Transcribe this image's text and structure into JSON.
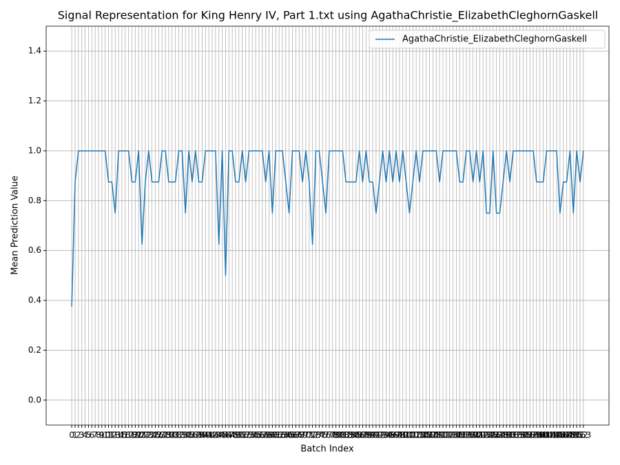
{
  "chart_data": {
    "type": "line",
    "title": "Signal Representation for King Henry IV, Part 1.txt using AgathaChristie_ElizabethCleghornGaskell",
    "xlabel": "Batch Index",
    "ylabel": "Mean Prediction Value",
    "x": [
      0,
      1,
      2,
      3,
      4,
      5,
      6,
      7,
      8,
      9,
      10,
      11,
      12,
      13,
      14,
      15,
      16,
      17,
      18,
      19,
      20,
      21,
      22,
      23,
      24,
      25,
      26,
      27,
      28,
      29,
      30,
      31,
      32,
      33,
      34,
      35,
      36,
      37,
      38,
      39,
      40,
      41,
      42,
      43,
      44,
      45,
      46,
      47,
      48,
      49,
      50,
      51,
      52,
      53,
      54,
      55,
      56,
      57,
      58,
      59,
      60,
      61,
      62,
      63,
      64,
      65,
      66,
      67,
      68,
      69,
      70,
      71,
      72,
      73,
      74,
      75,
      76,
      77,
      78,
      79,
      80,
      81,
      82,
      83,
      84,
      85,
      86,
      87,
      88,
      89,
      90,
      91,
      92,
      93,
      94,
      95,
      96,
      97,
      98,
      99,
      100,
      101,
      102,
      103,
      104,
      105,
      106,
      107,
      108,
      109,
      110,
      111,
      112,
      113,
      114,
      115,
      116,
      117,
      118,
      119,
      120,
      121,
      122,
      123,
      124,
      125,
      126,
      127,
      128,
      129,
      130,
      131,
      132,
      133,
      134,
      135,
      136,
      137,
      138,
      139,
      140,
      141,
      142,
      143,
      144,
      145,
      146,
      147,
      148,
      149,
      150,
      151,
      152,
      153
    ],
    "series": [
      {
        "name": "AgathaChristie_ElizabethCleghornGaskell",
        "color": "#1f77b4",
        "values": [
          0.375,
          0.875,
          1,
          1,
          1,
          1,
          1,
          1,
          1,
          1,
          1,
          0.875,
          0.875,
          0.75,
          1,
          1,
          1,
          1,
          0.875,
          0.875,
          1,
          0.625,
          0.875,
          1,
          0.875,
          0.875,
          0.875,
          1,
          1,
          0.875,
          0.875,
          0.875,
          1,
          1,
          0.75,
          1,
          0.875,
          1,
          0.875,
          0.875,
          1,
          1,
          1,
          1,
          0.625,
          1,
          0.5,
          1,
          1,
          0.875,
          0.875,
          1,
          0.875,
          1,
          1,
          1,
          1,
          1,
          0.875,
          1,
          0.75,
          1,
          1,
          1,
          0.875,
          0.75,
          1,
          1,
          1,
          0.875,
          1,
          0.875,
          0.625,
          1,
          1,
          0.875,
          0.75,
          1,
          1,
          1,
          1,
          1,
          0.875,
          0.875,
          0.875,
          0.875,
          1,
          0.875,
          1,
          0.875,
          0.875,
          0.75,
          0.875,
          1,
          0.875,
          1,
          0.875,
          1,
          0.875,
          1,
          0.875,
          0.75,
          0.875,
          1,
          0.875,
          1,
          1,
          1,
          1,
          1,
          0.875,
          1,
          1,
          1,
          1,
          1,
          0.875,
          0.875,
          1,
          1,
          0.875,
          1,
          0.875,
          1,
          0.75,
          0.75,
          1,
          0.75,
          0.75,
          0.875,
          1,
          0.875,
          1,
          1,
          1,
          1,
          1,
          1,
          1,
          0.875,
          0.875,
          0.875,
          1,
          1,
          1,
          1,
          0.75,
          0.875,
          0.875,
          1,
          0.75,
          1,
          0.875,
          1
        ]
      }
    ],
    "xlim": [
      -7.65,
      160.65
    ],
    "xticks": [
      0,
      1,
      2,
      3,
      4,
      5,
      6,
      7,
      8,
      9,
      10,
      11,
      12,
      13,
      14,
      15,
      16,
      17,
      18,
      19,
      20,
      21,
      22,
      23,
      24,
      25,
      26,
      27,
      28,
      29,
      30,
      31,
      32,
      33,
      34,
      35,
      36,
      37,
      38,
      39,
      40,
      41,
      42,
      43,
      44,
      45,
      46,
      47,
      48,
      49,
      50,
      51,
      52,
      53,
      54,
      55,
      56,
      57,
      58,
      59,
      60,
      61,
      62,
      63,
      64,
      65,
      66,
      67,
      68,
      69,
      70,
      71,
      72,
      73,
      74,
      75,
      76,
      77,
      78,
      79,
      80,
      81,
      82,
      83,
      84,
      85,
      86,
      87,
      88,
      89,
      90,
      91,
      92,
      93,
      94,
      95,
      96,
      97,
      98,
      99,
      100,
      101,
      102,
      103,
      104,
      105,
      106,
      107,
      108,
      109,
      110,
      111,
      112,
      113,
      114,
      115,
      116,
      117,
      118,
      119,
      120,
      121,
      122,
      123,
      124,
      125,
      126,
      127,
      128,
      129,
      130,
      131,
      132,
      133,
      134,
      135,
      136,
      137,
      138,
      139,
      140,
      141,
      142,
      143,
      144,
      145,
      146,
      147,
      148,
      149,
      150,
      151,
      152,
      153
    ],
    "ylim": [
      -0.1,
      1.5
    ],
    "yticks": [
      {
        "value": 0,
        "label": "0.0"
      },
      0.2,
      0.4,
      0.6,
      0.8,
      {
        "value": 1,
        "label": "1.0"
      },
      1.2,
      1.4
    ],
    "grid": true,
    "legend": "upper right"
  }
}
